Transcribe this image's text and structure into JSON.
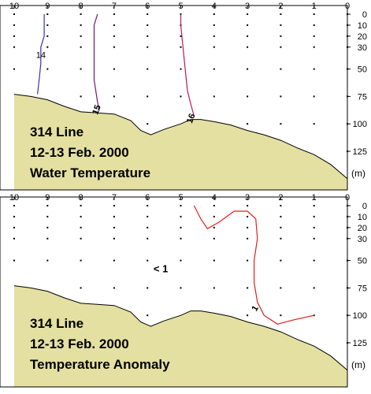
{
  "colors": {
    "land": "#e4e0a2",
    "land_outline": "#000000",
    "axis": "#000000",
    "station_dot": "#000000",
    "isotherm_14": "#3a2fb0",
    "isotherm_15": "#6a1a72",
    "isotherm_16": "#c0155a",
    "anomaly_contour": "#e3201b"
  },
  "chart_data": [
    {
      "type": "contour",
      "title_lines": [
        "314 Line",
        "12-13 Feb. 2000",
        "Water Temperature"
      ],
      "depth_unit": "(m)",
      "station_labels": [
        "10",
        "9",
        "8",
        "7",
        "6",
        "5",
        "4",
        "3",
        "2",
        "1",
        "0"
      ],
      "depth_ticks": [
        0,
        10,
        20,
        30,
        50,
        75,
        100,
        125
      ],
      "depth_tick_labels": [
        "0",
        "10",
        "20",
        "30",
        "50",
        "75",
        "100",
        "125"
      ],
      "xlim": [
        10,
        0
      ],
      "ylim": [
        0,
        150
      ],
      "seafloor": [
        [
          10,
          73
        ],
        [
          9.5,
          75
        ],
        [
          9,
          78
        ],
        [
          8.5,
          84
        ],
        [
          8,
          89
        ],
        [
          7.5,
          90
        ],
        [
          7,
          91
        ],
        [
          6.5,
          97
        ],
        [
          6.2,
          106
        ],
        [
          5.9,
          110
        ],
        [
          5.5,
          105
        ],
        [
          5,
          100
        ],
        [
          4.7,
          96
        ],
        [
          4.4,
          96
        ],
        [
          4,
          98
        ],
        [
          3.5,
          101
        ],
        [
          3,
          106
        ],
        [
          2.5,
          110
        ],
        [
          2,
          115
        ],
        [
          1.5,
          122
        ],
        [
          1,
          128
        ],
        [
          0.5,
          137
        ],
        [
          0,
          150
        ]
      ],
      "contours": [
        {
          "label": "14",
          "label_pos": [
            9.2,
            37
          ],
          "points": [
            [
              9.1,
              0
            ],
            [
              9.1,
              10
            ],
            [
              9.1,
              20
            ],
            [
              9.2,
              30
            ],
            [
              9.2,
              45
            ],
            [
              9.25,
              60
            ],
            [
              9.3,
              73
            ]
          ]
        },
        {
          "label": "15",
          "label_pos": [
            7.45,
            85
          ],
          "points": [
            [
              7.5,
              0
            ],
            [
              7.6,
              10
            ],
            [
              7.6,
              20
            ],
            [
              7.6,
              40
            ],
            [
              7.6,
              60
            ],
            [
              7.5,
              80
            ],
            [
              7.45,
              88
            ]
          ]
        },
        {
          "label": "16",
          "label_pos": [
            4.62,
            93
          ],
          "points": [
            [
              5.0,
              0
            ],
            [
              5.0,
              10
            ],
            [
              4.95,
              25
            ],
            [
              4.9,
              40
            ],
            [
              4.85,
              55
            ],
            [
              4.8,
              70
            ],
            [
              4.7,
              82
            ],
            [
              4.6,
              93
            ]
          ]
        }
      ],
      "annotations": []
    },
    {
      "type": "contour",
      "title_lines": [
        "314 Line",
        "12-13 Feb. 2000",
        "Temperature Anomaly"
      ],
      "depth_unit": "(m)",
      "station_labels": [
        "10",
        "9",
        "8",
        "7",
        "6",
        "5",
        "4",
        "3",
        "2",
        "1",
        "0"
      ],
      "depth_ticks": [
        0,
        10,
        20,
        30,
        50,
        75,
        100,
        125
      ],
      "depth_tick_labels": [
        "0",
        "10",
        "20",
        "30",
        "50",
        "75",
        "100",
        "125"
      ],
      "xlim": [
        10,
        0
      ],
      "ylim": [
        0,
        150
      ],
      "seafloor": [
        [
          10,
          73
        ],
        [
          9.5,
          75
        ],
        [
          9,
          78
        ],
        [
          8.5,
          84
        ],
        [
          8,
          89
        ],
        [
          7.5,
          90
        ],
        [
          7,
          91
        ],
        [
          6.5,
          97
        ],
        [
          6.2,
          106
        ],
        [
          5.9,
          110
        ],
        [
          5.5,
          105
        ],
        [
          5,
          100
        ],
        [
          4.7,
          96
        ],
        [
          4.4,
          96
        ],
        [
          4,
          98
        ],
        [
          3.5,
          101
        ],
        [
          3,
          106
        ],
        [
          2.5,
          110
        ],
        [
          2,
          115
        ],
        [
          1.5,
          122
        ],
        [
          1,
          128
        ],
        [
          0.5,
          137
        ],
        [
          0,
          150
        ]
      ],
      "contours": [
        {
          "label": "1",
          "label_pos": [
            2.7,
            92
          ],
          "points": [
            [
              4.6,
              0
            ],
            [
              4.4,
              12
            ],
            [
              4.2,
              21
            ],
            [
              3.85,
              15
            ],
            [
              3.4,
              5
            ],
            [
              3.0,
              5
            ],
            [
              2.75,
              12
            ],
            [
              2.7,
              30
            ],
            [
              2.8,
              50
            ],
            [
              2.8,
              70
            ],
            [
              2.7,
              88
            ],
            [
              2.5,
              100
            ],
            [
              2.1,
              108
            ],
            [
              1.6,
              104
            ],
            [
              1.0,
              100
            ]
          ]
        }
      ],
      "annotations": [
        {
          "text": "< 1",
          "pos": [
            5.6,
            58
          ]
        }
      ]
    }
  ]
}
